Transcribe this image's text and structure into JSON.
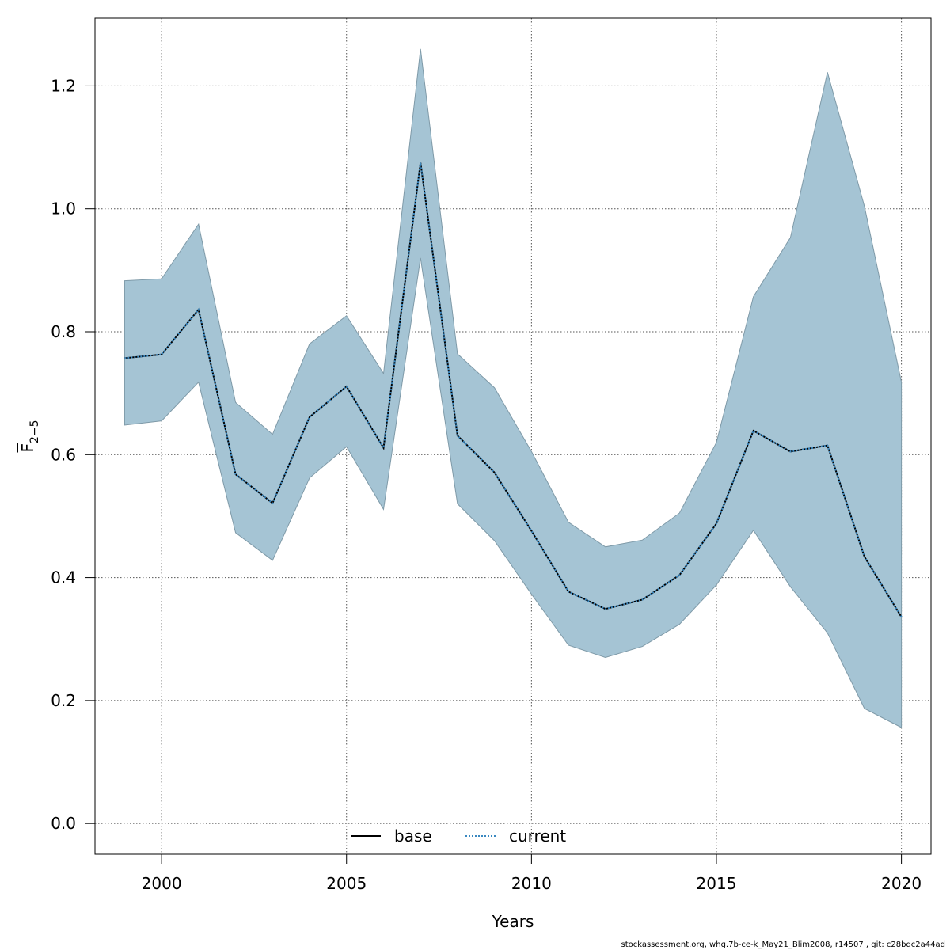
{
  "chart_data": {
    "type": "line",
    "title": "",
    "xlabel": "Years",
    "ylabel_main": "F",
    "ylabel_sub": "2−5",
    "xlim": [
      1998.2,
      2020.8
    ],
    "ylim": [
      -0.05,
      1.31
    ],
    "x_ticks": [
      2000,
      2005,
      2010,
      2015,
      2020
    ],
    "y_ticks": [
      0.0,
      0.2,
      0.4,
      0.6,
      0.8,
      1.0,
      1.2
    ],
    "y_tick_labels": [
      "0.0",
      "0.2",
      "0.4",
      "0.6",
      "0.8",
      "1.0",
      "1.2"
    ],
    "grid": true,
    "legend_placement": "bottom",
    "x": [
      1999,
      2000,
      2001,
      2002,
      2003,
      2004,
      2005,
      2006,
      2007,
      2008,
      2009,
      2010,
      2011,
      2012,
      2013,
      2014,
      2015,
      2016,
      2017,
      2018,
      2019,
      2020
    ],
    "series": [
      {
        "name": "base",
        "style": "solid",
        "color": "#000000",
        "values": [
          0.757,
          0.763,
          0.836,
          0.568,
          0.521,
          0.661,
          0.711,
          0.611,
          1.075,
          0.631,
          0.571,
          0.476,
          0.377,
          0.349,
          0.364,
          0.404,
          0.488,
          0.639,
          0.605,
          0.615,
          0.434,
          0.336
        ]
      },
      {
        "name": "current",
        "style": "dotted",
        "color": "#3a88c0",
        "values": [
          0.757,
          0.763,
          0.836,
          0.568,
          0.521,
          0.661,
          0.711,
          0.611,
          1.075,
          0.631,
          0.571,
          0.476,
          0.377,
          0.349,
          0.364,
          0.404,
          0.488,
          0.639,
          0.605,
          0.615,
          0.434,
          0.336
        ]
      }
    ],
    "band": {
      "color": "#a5c4d4",
      "upper": [
        0.883,
        0.886,
        0.975,
        0.685,
        0.633,
        0.78,
        0.826,
        0.732,
        1.26,
        0.764,
        0.709,
        0.605,
        0.49,
        0.45,
        0.461,
        0.505,
        0.62,
        0.857,
        0.953,
        1.222,
        1.004,
        0.718
      ],
      "lower": [
        0.648,
        0.655,
        0.718,
        0.473,
        0.428,
        0.562,
        0.613,
        0.511,
        0.92,
        0.52,
        0.46,
        0.373,
        0.29,
        0.27,
        0.288,
        0.324,
        0.388,
        0.477,
        0.385,
        0.31,
        0.187,
        0.156
      ]
    }
  },
  "footer_text": "stockassessment.org, whg.7b-ce-k_May21_Blim2008, r14507 , git: c28bdc2a44ad"
}
